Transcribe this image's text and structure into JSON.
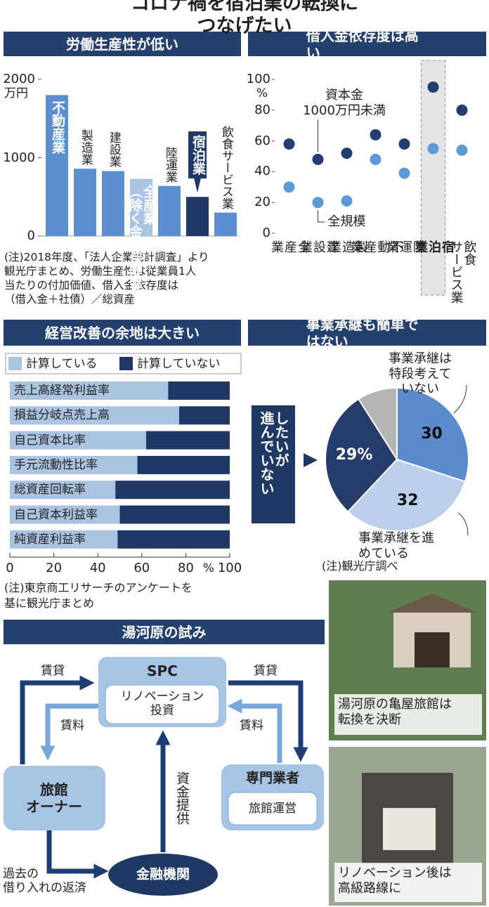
{
  "title": "コロナ禍を宿泊業の転換につなげたい",
  "note": "(注)2018年度、「法人企業統計調査」より\n観光庁まとめ、労働生産性は従業員1人\n当たりの付加価値、借入金依存度は\n（借入金＋社債）／総資産",
  "chart_data": [
    {
      "type": "bar",
      "title": "労働生産性が低い",
      "categories": [
        "不動産業",
        "製造業",
        "建設業",
        "全産業\n（除く金融保険業）",
        "陸運業",
        "宿泊業",
        "飲食サービス業"
      ],
      "values": [
        1800,
        860,
        830,
        730,
        640,
        500,
        300
      ],
      "colors": [
        "#5b8fd0",
        "#5b8fd0",
        "#5b8fd0",
        "#a9c3e3",
        "#5b8fd0",
        "#1f3864",
        "#5b8fd0"
      ],
      "highlight": "宿泊業",
      "ylim": [
        0,
        2000
      ],
      "yticks": [
        0,
        1000,
        2000
      ],
      "y_unit": "万円"
    },
    {
      "type": "dot",
      "title": "借入金依存度は高い",
      "categories": [
        "全\n産\n業",
        "建\n設\n業",
        "製\n造\n業",
        "不\n動\n産\n業",
        "陸\n運\n業",
        "宿\n泊\n業",
        "飲食\nサービス業"
      ],
      "highlight": "宿\n泊\n業",
      "series": [
        {
          "name": "資本金\n1000万円未満",
          "color": "#233d6e",
          "values": [
            58,
            48,
            52,
            64,
            58,
            95,
            80
          ]
        },
        {
          "name": "全規模",
          "color": "#5b9bd5",
          "values": [
            30,
            20,
            21,
            48,
            39,
            55,
            54
          ]
        }
      ],
      "ylim": [
        0,
        100
      ],
      "yticks": [
        0,
        20,
        40,
        60,
        80,
        100
      ],
      "y_unit": "%"
    },
    {
      "type": "hbar",
      "title": "経営改善の余地は大きい",
      "stacked": true,
      "categories": [
        "売上高経常利益率",
        "損益分岐点売上高",
        "自己資本比率",
        "手元流動性比率",
        "総資産回転率",
        "自己資本利益率",
        "純資産利益率"
      ],
      "series": [
        {
          "name": "計算している",
          "color": "#a9c3e0",
          "values": [
            72,
            77,
            62,
            58,
            48,
            50,
            49
          ]
        },
        {
          "name": "計算していない",
          "color": "#1f3864",
          "values": [
            28,
            23,
            38,
            42,
            52,
            50,
            51
          ]
        }
      ],
      "xlim": [
        0,
        100
      ],
      "xticks": [
        0,
        20,
        40,
        60,
        80,
        100
      ],
      "x_unit": "%",
      "note": "(注)東京商工リサーチのアンケートを\n基に観光庁まとめ"
    },
    {
      "type": "pie",
      "title": "事業承継も簡単ではない",
      "categories": [
        "事業承継は\n特段考えていない",
        "事業承継を進めている",
        "したいが\n進んでいない",
        null
      ],
      "values": [
        30,
        32,
        29,
        9
      ],
      "value_labels": [
        "30",
        "32",
        "29%",
        null
      ],
      "colors": [
        "#5a8ccb",
        "#bccfea",
        "#263d6b",
        "#b5b5b5"
      ],
      "note": "(注)観光庁調べ"
    }
  ],
  "diagram": {
    "title": "湯河原の試み",
    "nodes": [
      {
        "label": "SPC",
        "sub": "リノベーション\n投資"
      },
      {
        "label": "旅館\nオーナー"
      },
      {
        "label": "専門業者",
        "sub": "旅館運営"
      },
      {
        "label": "金融機関"
      }
    ],
    "edges": [
      {
        "label": "賃貸"
      },
      {
        "label": "賃料"
      },
      {
        "label": "賃貸"
      },
      {
        "label": "賃料"
      },
      {
        "label": "資金提供"
      },
      {
        "label": "過去の\n借り入れの返済"
      }
    ]
  },
  "photos": [
    {
      "caption": "湯河原の亀屋旅館は\n転換を決断"
    },
    {
      "caption": "リノベーション後は\n高級路線に"
    }
  ]
}
